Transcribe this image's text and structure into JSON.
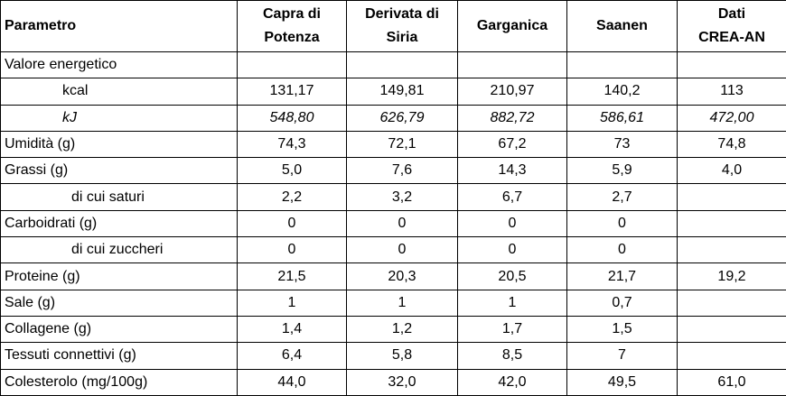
{
  "table": {
    "header": [
      "Parametro",
      "Capra di\nPotenza",
      "Derivata di\nSiria",
      "Garganica",
      "Saanen",
      "Dati\nCREA-AN"
    ],
    "rows": [
      [
        "Valore energetico",
        null,
        null,
        null,
        null,
        null
      ],
      [
        "kcal",
        "131,17",
        "149,81",
        "210,97",
        "140,2",
        "113"
      ],
      [
        "kJ",
        "548,80",
        "626,79",
        "882,72",
        "586,61",
        "472,00"
      ],
      [
        "Umidità (g)",
        "74,3",
        "72,1",
        "67,2",
        "73",
        "74,8"
      ],
      [
        "Grassi (g)",
        "5,0",
        "7,6",
        "14,3",
        "5,9",
        "4,0"
      ],
      [
        "di cui saturi",
        "2,2",
        "3,2",
        "6,7",
        "2,7",
        null
      ],
      [
        "Carboidrati (g)",
        "0",
        "0",
        "0",
        "0",
        null
      ],
      [
        "di cui zuccheri",
        "0",
        "0",
        "0",
        "0",
        null
      ],
      [
        "Proteine (g)",
        "21,5",
        "20,3",
        "20,5",
        "21,7",
        "19,2"
      ],
      [
        "Sale (g)",
        "1",
        "1",
        "1",
        "0,7",
        null
      ],
      [
        "Collagene (g)",
        "1,4",
        "1,2",
        "1,7",
        "1,5",
        null
      ],
      [
        "Tessuti connettivi (g)",
        "6,4",
        "5,8",
        "8,5",
        "7",
        null
      ],
      [
        "Colesterolo (mg/100g)",
        "44,0",
        "32,0",
        "42,0",
        "49,5",
        "61,0"
      ]
    ]
  }
}
